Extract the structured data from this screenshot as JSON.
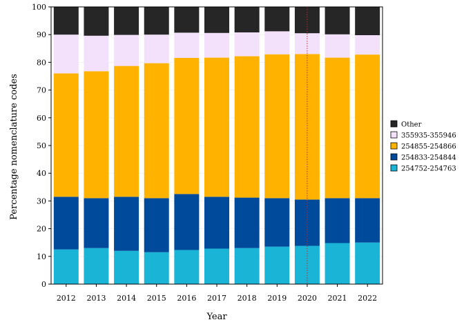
{
  "chart_data": {
    "type": "bar",
    "stacked": true,
    "title": "",
    "xlabel": "Year",
    "ylabel": "Percentage nomenclature codes",
    "ylim": [
      0,
      100
    ],
    "yticks": [
      0,
      10,
      20,
      30,
      40,
      50,
      60,
      70,
      80,
      90,
      100
    ],
    "categories": [
      "2012",
      "2013",
      "2014",
      "2015",
      "2016",
      "2017",
      "2018",
      "2019",
      "2020",
      "2021",
      "2022"
    ],
    "series": [
      {
        "name": "254752-254763",
        "color": "#1ab4d6",
        "values": [
          12.5,
          13.0,
          12.0,
          11.5,
          12.3,
          12.8,
          13.0,
          13.5,
          13.8,
          14.8,
          15.0
        ]
      },
      {
        "name": "254833-254844",
        "color": "#004a9c",
        "values": [
          19.0,
          18.0,
          19.5,
          19.5,
          20.2,
          18.7,
          18.2,
          17.5,
          16.7,
          16.2,
          16.0
        ]
      },
      {
        "name": "254855-254866",
        "color": "#ffb300",
        "values": [
          44.5,
          45.8,
          47.2,
          48.7,
          49.1,
          50.2,
          51.0,
          51.9,
          52.5,
          50.7,
          51.8
        ]
      },
      {
        "name": "355935-355946",
        "color": "#f3e1fb",
        "values": [
          14.0,
          12.8,
          11.2,
          10.3,
          9.1,
          8.9,
          8.6,
          8.3,
          7.5,
          8.4,
          7.0
        ]
      },
      {
        "name": "Other",
        "color": "#262626",
        "values": [
          10.0,
          10.4,
          10.1,
          10.0,
          9.3,
          9.4,
          9.2,
          8.8,
          9.5,
          9.9,
          10.2
        ]
      }
    ],
    "reference_line": {
      "x": "2020",
      "style": "dotted",
      "color": "#b03030"
    },
    "legend": {
      "position": "right",
      "order": [
        "Other",
        "355935-355946",
        "254855-254866",
        "254833-254844",
        "254752-254763"
      ]
    },
    "grid": false
  }
}
